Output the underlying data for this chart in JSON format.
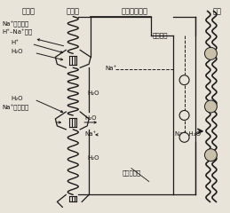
{
  "bg_color": "#e8e4da",
  "line_color": "#1a1a1a",
  "text_color": "#111111",
  "labels": {
    "lumen": "小管腔",
    "membrane_top": "管腔膜",
    "cell": "近球小管细胞",
    "basement": "基膜",
    "tight": "紧密连接",
    "basolateral": "基底外侧膜",
    "na_fac1": "Na⁺易化扩散",
    "h_na": "H⁺–Na⁺交换",
    "h_plus": "H⁺",
    "h2o_1": "H₂O",
    "h2o_2": "H₂O",
    "h2o_3": "H₂O",
    "h2o_4": "H₂O",
    "h2o_5": "H₂O",
    "na_top": "Na⁺",
    "na_mid": "Na⁺",
    "na_h2o": "Na⁺ H₂O",
    "na_fac2": "Na⁺易化扩散"
  },
  "fs_header": 6.0,
  "fs_label": 5.2,
  "fs_small": 5.0,
  "spring_color": "#1a1a1a",
  "channel_color": "#1a1a1a"
}
